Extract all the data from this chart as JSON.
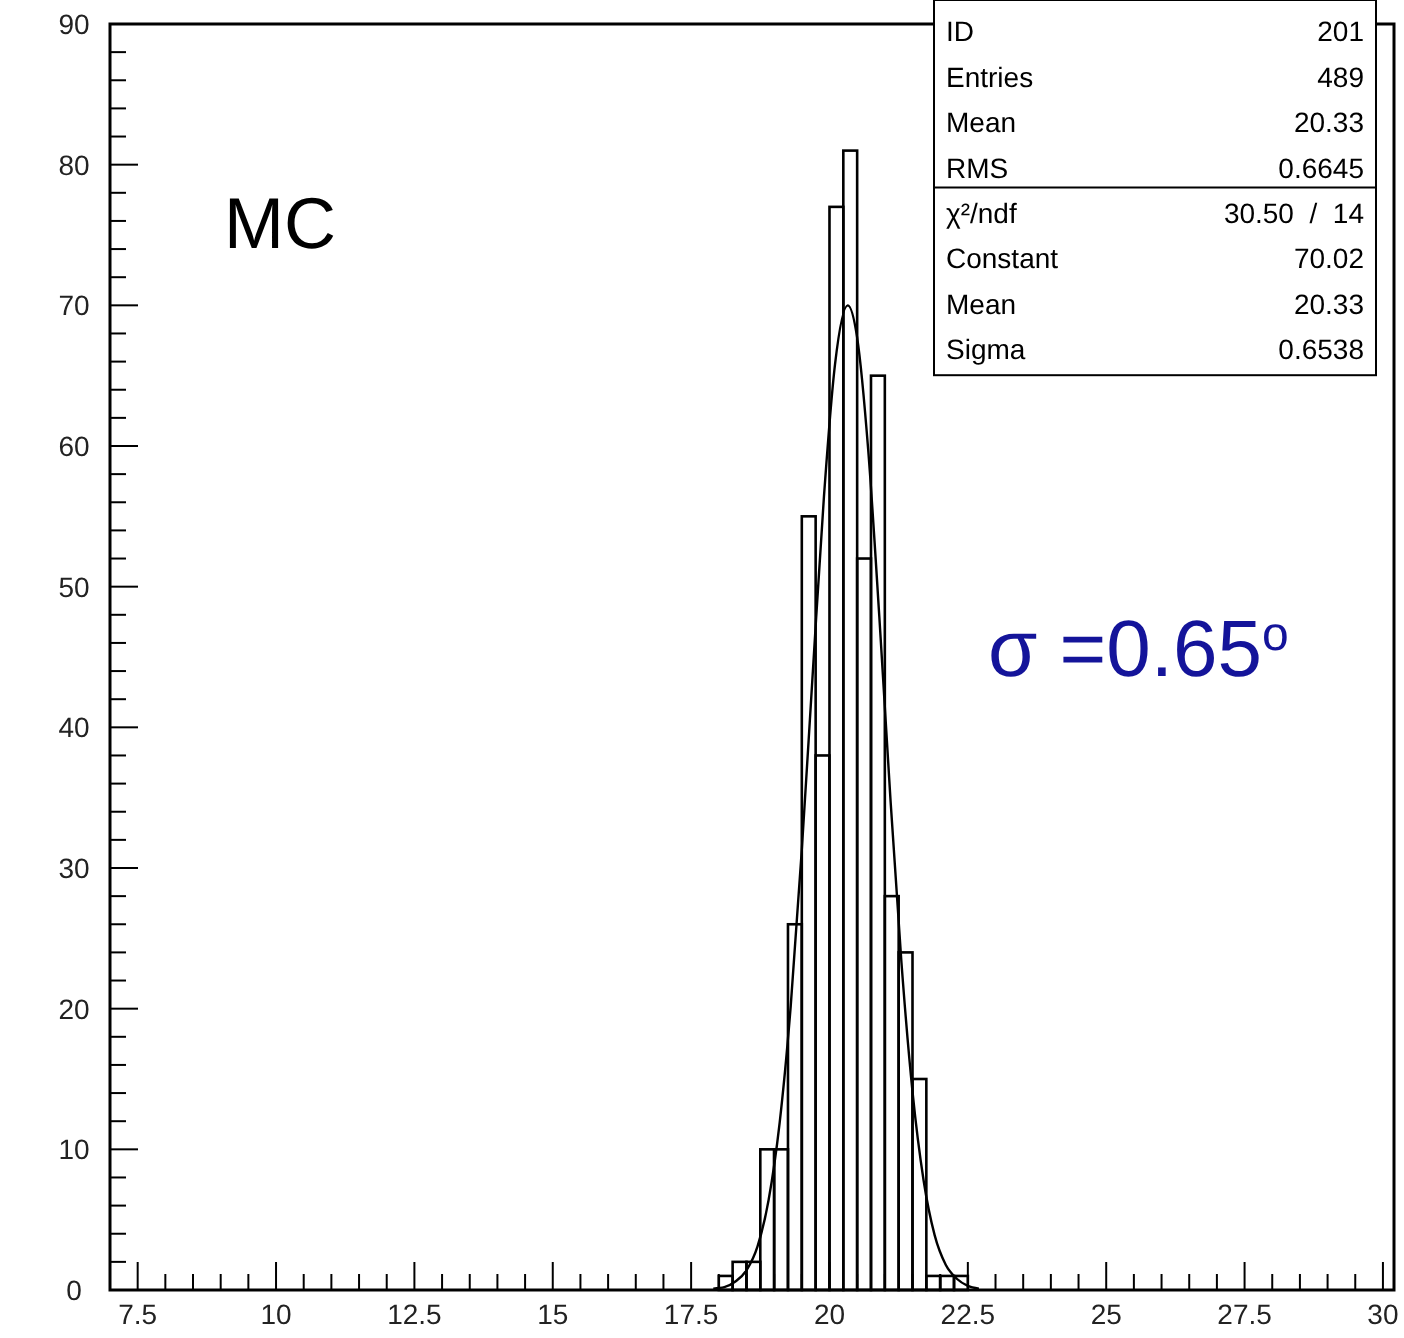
{
  "chart_data": {
    "type": "histogram",
    "xlim": [
      7,
      30.2
    ],
    "ylim": [
      0,
      90
    ],
    "xticks": [
      7.5,
      10,
      12.5,
      15,
      17.5,
      20,
      22.5,
      25,
      27.5,
      30
    ],
    "yticks": [
      0,
      10,
      20,
      30,
      40,
      50,
      60,
      70,
      80,
      90
    ],
    "grid": false,
    "series": [
      {
        "color": "#000000",
        "bins": [
          18,
          18.25,
          18.5,
          18.75,
          19,
          19.25,
          19.5,
          19.75,
          20,
          20.25,
          20.5,
          20.75,
          21,
          21.25,
          21.5,
          21.75,
          22,
          22.25,
          22.5
        ],
        "values": [
          1,
          2,
          2,
          10,
          10,
          26,
          55,
          38,
          77,
          81,
          52,
          65,
          28,
          24,
          15,
          1,
          1,
          1
        ]
      },
      {
        "type": "line",
        "color": "#000000",
        "x": [
          17.9,
          18.1,
          18.3,
          18.5,
          18.7,
          18.9,
          19.1,
          19.3,
          19.5,
          19.7,
          19.9,
          20.1,
          20.33,
          20.5,
          20.7,
          20.9,
          21.1,
          21.3,
          21.5,
          21.7,
          21.9,
          22.1,
          22.3,
          22.5,
          22.7
        ],
        "values": [
          0.1,
          0.2,
          0.6,
          1.4,
          3.1,
          6.4,
          11.9,
          20.2,
          31.3,
          44,
          56.4,
          65.8,
          70,
          67.7,
          59.7,
          47.9,
          35,
          23.3,
          14.1,
          7.8,
          3.9,
          1.8,
          0.8,
          0.3,
          0.1
        ]
      }
    ],
    "annotations": [
      "ID",
      "201",
      "Entries",
      "489",
      "Mean",
      "20.33",
      "RMS",
      "0.6645",
      "χ²/ndf",
      "30.50  /  14",
      "Constant",
      "70.02",
      "Mean",
      "20.33",
      "Sigma",
      "0.6538",
      "MC",
      "σ =0.65$^{o}$"
    ]
  }
}
